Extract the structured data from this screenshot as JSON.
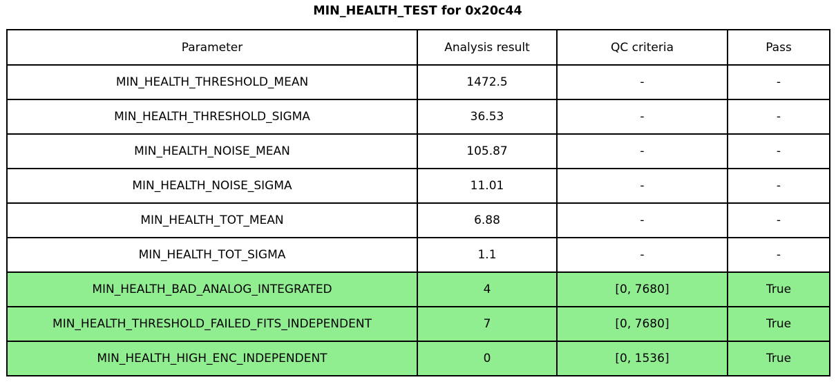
{
  "title": "MIN_HEALTH_TEST for 0x20c44",
  "colors": {
    "background": "#FFFFFF",
    "border": "#000000",
    "text": "#000000",
    "highlight_green": "#90EE90"
  },
  "chart_data": {
    "type": "table",
    "title": "MIN_HEALTH_TEST for 0x20c44",
    "columns": [
      "Parameter",
      "Analysis result",
      "QC criteria",
      "Pass"
    ],
    "rows": [
      [
        "MIN_HEALTH_THRESHOLD_MEAN",
        "1472.5",
        "-",
        "-"
      ],
      [
        "MIN_HEALTH_THRESHOLD_SIGMA",
        "36.53",
        "-",
        "-"
      ],
      [
        "MIN_HEALTH_NOISE_MEAN",
        "105.87",
        "-",
        "-"
      ],
      [
        "MIN_HEALTH_NOISE_SIGMA",
        "11.01",
        "-",
        "-"
      ],
      [
        "MIN_HEALTH_TOT_MEAN",
        "6.88",
        "-",
        "-"
      ],
      [
        "MIN_HEALTH_TOT_SIGMA",
        "1.1",
        "-",
        "-"
      ],
      [
        "MIN_HEALTH_BAD_ANALOG_INTEGRATED",
        "4",
        "[0, 7680]",
        "True"
      ],
      [
        "MIN_HEALTH_THRESHOLD_FAILED_FITS_INDEPENDENT",
        "7",
        "[0, 7680]",
        "True"
      ],
      [
        "MIN_HEALTH_HIGH_ENC_INDEPENDENT",
        "0",
        "[0, 1536]",
        "True"
      ]
    ],
    "highlighted_rows": [
      6,
      7,
      8
    ],
    "highlight_color": "#90EE90",
    "grid": true,
    "legend": "none"
  }
}
